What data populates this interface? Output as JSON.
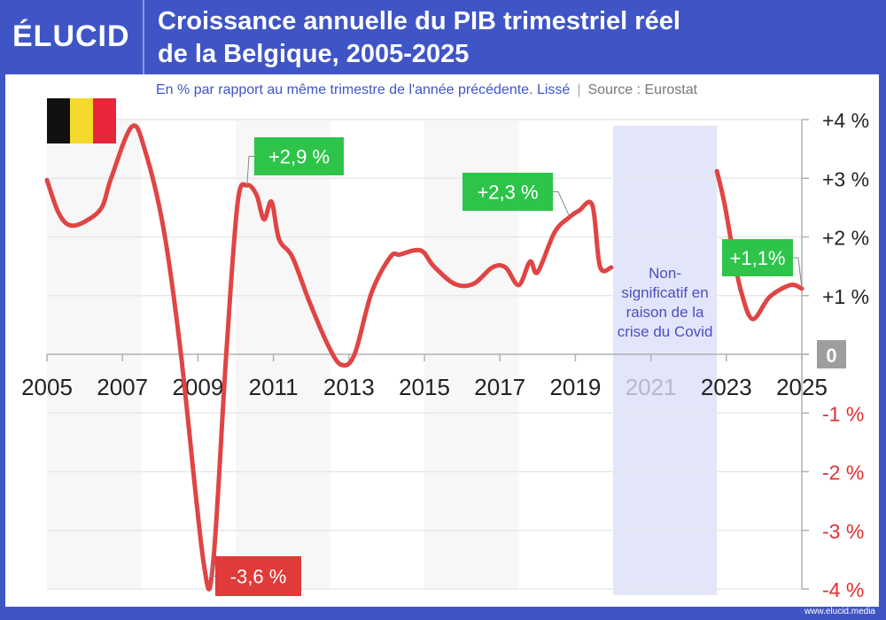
{
  "header": {
    "logo": "ÉLUCID",
    "title_line1": "Croissance annuelle du PIB trimestriel réel",
    "title_line2": "de la Belgique, 2005-2025"
  },
  "subtitle": {
    "text": "En % par rapport au même trimestre de l'année précédente. Lissé",
    "separator": "|",
    "source": "Source : Eurostat"
  },
  "footer": "www.elucid.media",
  "colors": {
    "frame": "#3f55c6",
    "line": "#e04444",
    "positive_label": "#2ec44a",
    "negative_label": "#e03a3a",
    "covid_band": "#e3e5fa",
    "covid_text": "#4b4fc0",
    "negative_axis": "#e03030"
  },
  "chart_data": {
    "type": "line",
    "title": "Croissance annuelle du PIB trimestriel réel de la Belgique, 2005-2025",
    "ylabel": "En % par rapport au même trimestre de l'année précédente",
    "xlim": [
      2005,
      2025
    ],
    "ylim": [
      -4,
      4
    ],
    "grid": true,
    "x_ticks": [
      "2005",
      "2007",
      "2009",
      "2011",
      "2013",
      "2015",
      "2017",
      "2019",
      "2021",
      "2023",
      "2025"
    ],
    "y_ticks": [
      {
        "v": 4,
        "label": "+4 %"
      },
      {
        "v": 3,
        "label": "+3 %"
      },
      {
        "v": 2,
        "label": "+2 %"
      },
      {
        "v": 1,
        "label": "+1 %"
      },
      {
        "v": 0,
        "label": "0"
      },
      {
        "v": -1,
        "label": "-1 %"
      },
      {
        "v": -2,
        "label": "-2 %"
      },
      {
        "v": -3,
        "label": "-3 %"
      },
      {
        "v": -4,
        "label": "-4 %"
      }
    ],
    "series": [
      {
        "points": [
          [
            2005.0,
            2.97
          ],
          [
            2005.3,
            2.42
          ],
          [
            2005.6,
            2.2
          ],
          [
            2006.0,
            2.26
          ],
          [
            2006.45,
            2.5
          ],
          [
            2006.7,
            3.0
          ],
          [
            2007.25,
            3.88
          ],
          [
            2007.6,
            3.47
          ],
          [
            2008.1,
            2.1
          ],
          [
            2008.55,
            0
          ],
          [
            2009.15,
            -3.55
          ],
          [
            2009.4,
            -3.57
          ],
          [
            2009.75,
            0
          ],
          [
            2010.05,
            2.57
          ],
          [
            2010.3,
            2.88
          ],
          [
            2010.55,
            2.72
          ],
          [
            2010.75,
            2.3
          ],
          [
            2010.95,
            2.6
          ],
          [
            2011.15,
            1.96
          ],
          [
            2011.5,
            1.66
          ],
          [
            2011.95,
            0.9
          ],
          [
            2012.45,
            0.15
          ],
          [
            2012.8,
            -0.18
          ],
          [
            2013.15,
            0
          ],
          [
            2013.6,
            1.05
          ],
          [
            2014.1,
            1.66
          ],
          [
            2014.35,
            1.7
          ],
          [
            2014.9,
            1.77
          ],
          [
            2015.25,
            1.5
          ],
          [
            2015.8,
            1.2
          ],
          [
            2016.3,
            1.2
          ],
          [
            2016.8,
            1.48
          ],
          [
            2017.15,
            1.48
          ],
          [
            2017.5,
            1.18
          ],
          [
            2017.8,
            1.58
          ],
          [
            2018.0,
            1.4
          ],
          [
            2018.45,
            2.08
          ],
          [
            2018.85,
            2.34
          ],
          [
            2019.1,
            2.45
          ],
          [
            2019.45,
            2.54
          ],
          [
            2019.65,
            1.5
          ],
          [
            2019.95,
            1.48
          ]
        ]
      },
      {
        "points": [
          [
            2022.75,
            3.12
          ],
          [
            2022.95,
            2.57
          ],
          [
            2023.2,
            1.66
          ],
          [
            2023.4,
            1.05
          ],
          [
            2023.7,
            0.6
          ],
          [
            2024.15,
            0.98
          ],
          [
            2024.7,
            1.18
          ],
          [
            2025.0,
            1.12
          ]
        ]
      }
    ],
    "shaded_periods": [
      [
        2005,
        2007.5
      ],
      [
        2010,
        2012.5
      ],
      [
        2015,
        2017.5
      ]
    ],
    "covid_band": {
      "range": [
        2020,
        2022.75
      ],
      "text": [
        "Non-",
        "significatif en",
        "raison de la",
        "crise du Covid"
      ]
    },
    "annotations": [
      {
        "label": "+2,9 %",
        "x": 2010.3,
        "y": 2.88,
        "type": "positive"
      },
      {
        "label": "-3,6 %",
        "x": 2009.4,
        "y": -3.57,
        "type": "negative"
      },
      {
        "label": "+2,3 %",
        "x": 2018.85,
        "y": 2.34,
        "type": "positive"
      },
      {
        "label": "+1,1%",
        "x": 2025.0,
        "y": 1.12,
        "type": "positive"
      }
    ]
  }
}
